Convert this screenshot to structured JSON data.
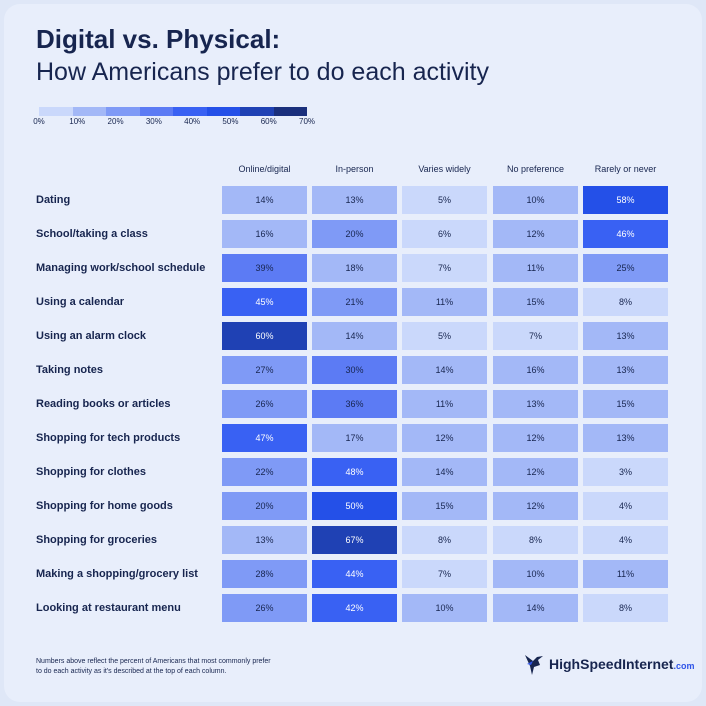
{
  "header": {
    "title": "Digital vs. Physical:",
    "subtitle": "How Americans prefer to do each activity"
  },
  "legend": {
    "colors": [
      "#cad8fb",
      "#a3b8f7",
      "#7f9af6",
      "#5c7bf4",
      "#3961f3",
      "#2450e8",
      "#1f41b4",
      "#1a2f7c"
    ],
    "ticks": [
      "0%",
      "10%",
      "20%",
      "30%",
      "40%",
      "50%",
      "60%",
      "70%"
    ]
  },
  "chart_data": {
    "type": "heatmap",
    "columns": [
      "Online/digital",
      "In-person",
      "Varies widely",
      "No preference",
      "Rarely or never"
    ],
    "rows": [
      "Dating",
      "School/taking a class",
      "Managing work/school schedule",
      "Using a calendar",
      "Using an alarm clock",
      "Taking notes",
      "Reading books or articles",
      "Shopping for tech products",
      "Shopping for clothes",
      "Shopping for home goods",
      "Shopping for groceries",
      "Making a shopping/grocery list",
      "Looking at restaurant menu"
    ],
    "values": [
      [
        14,
        13,
        5,
        10,
        58
      ],
      [
        16,
        20,
        6,
        12,
        46
      ],
      [
        39,
        18,
        7,
        11,
        25
      ],
      [
        45,
        21,
        11,
        15,
        8
      ],
      [
        60,
        14,
        5,
        7,
        13
      ],
      [
        27,
        30,
        14,
        16,
        13
      ],
      [
        26,
        36,
        11,
        13,
        15
      ],
      [
        47,
        17,
        12,
        12,
        13
      ],
      [
        22,
        48,
        14,
        12,
        3
      ],
      [
        20,
        50,
        15,
        12,
        4
      ],
      [
        13,
        67,
        8,
        8,
        4
      ],
      [
        28,
        44,
        7,
        10,
        11
      ],
      [
        26,
        42,
        10,
        14,
        8
      ]
    ],
    "unit": "%",
    "scale": [
      0,
      70
    ]
  },
  "footnote": "Numbers above reflect the percent of Americans that most commonly prefer to do each activity as it's described at the top of each column.",
  "logo": {
    "brand": "HighSpeedInternet",
    "tld": ".com"
  }
}
